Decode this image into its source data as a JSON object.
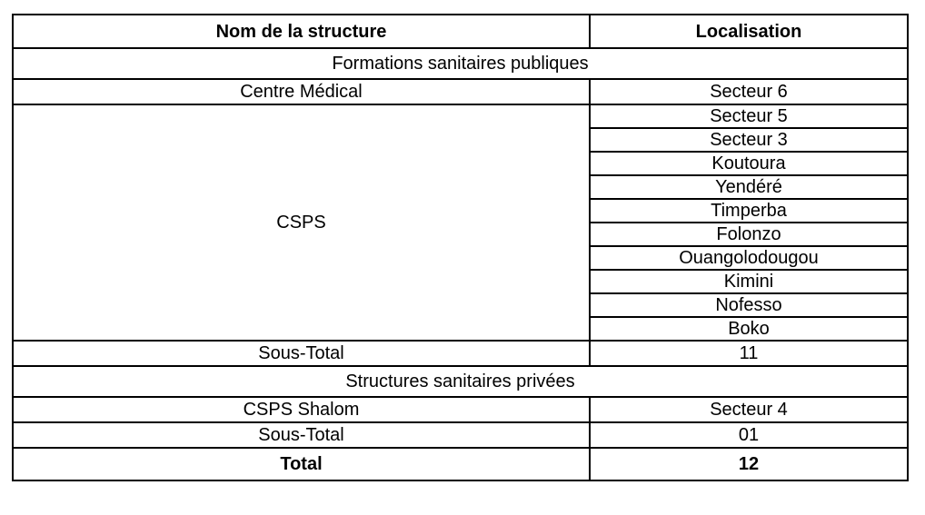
{
  "table": {
    "header": {
      "name_col": "Nom de la structure",
      "loc_col": "Localisation"
    },
    "section_public": {
      "title": "Formations sanitaires publiques",
      "centre_medical": {
        "name": "Centre Médical",
        "loc": "Secteur 6"
      },
      "csps": {
        "name": "CSPS",
        "locations": [
          "Secteur 5",
          "Secteur 3",
          "Koutoura",
          "Yendéré",
          "Timperba",
          "Folonzo",
          "Ouangolodougou",
          "Kimini",
          "Nofesso",
          "Boko"
        ]
      },
      "subtotal": {
        "label": "Sous-Total",
        "value": "11"
      }
    },
    "section_private": {
      "title": "Structures sanitaires privées",
      "csps_shalom": {
        "name": "CSPS Shalom",
        "loc": "Secteur 4"
      },
      "subtotal": {
        "label": "Sous-Total",
        "value": "01"
      }
    },
    "total": {
      "label": "Total",
      "value": "12"
    }
  },
  "colors": {
    "border": "#000000",
    "text": "#000000",
    "background": "#ffffff"
  }
}
